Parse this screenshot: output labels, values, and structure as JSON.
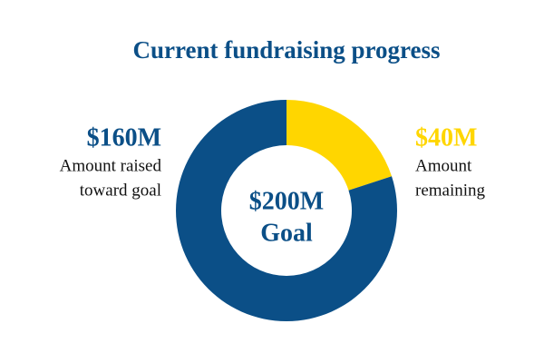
{
  "chart_data": {
    "type": "donut",
    "title": "Current fundraising progress",
    "categories": [
      [
        "Amount raised",
        "toward goal"
      ],
      [
        "Amount",
        "remaining"
      ]
    ],
    "values": [
      160,
      40
    ],
    "value_labels": [
      "$160M",
      "$40M"
    ],
    "colors": [
      "#0b4f87",
      "#ffd600"
    ],
    "center_label": "$200M",
    "center_sublabel": "Goal"
  }
}
